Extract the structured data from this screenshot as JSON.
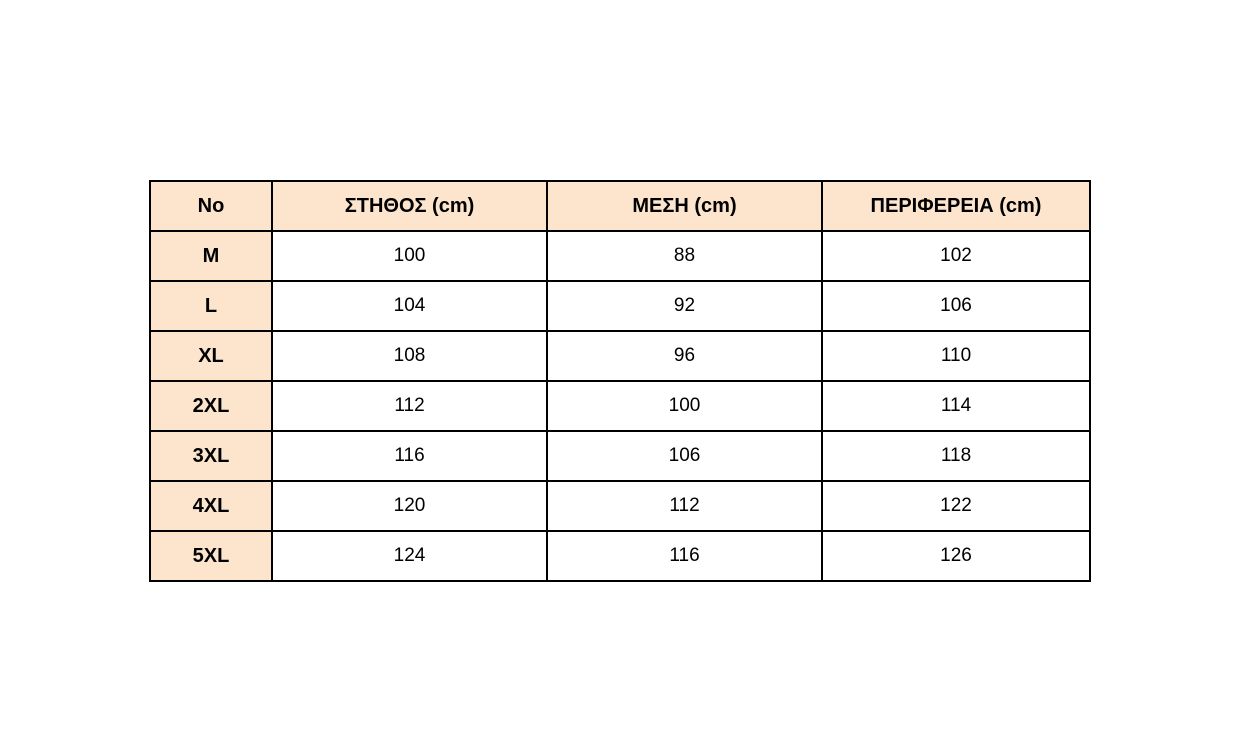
{
  "chart_data": {
    "type": "table",
    "title": "",
    "columns": [
      "No",
      "ΣΤΗΘΟΣ (cm)",
      "ΜΕΣΗ (cm)",
      "ΠΕΡΙΦΕΡΕΙΑ (cm)"
    ],
    "rows": [
      [
        "M",
        "100",
        "88",
        "102"
      ],
      [
        "L",
        "104",
        "92",
        "106"
      ],
      [
        "XL",
        "108",
        "96",
        "110"
      ],
      [
        "2XL",
        "112",
        "100",
        "114"
      ],
      [
        "3XL",
        "116",
        "106",
        "118"
      ],
      [
        "4XL",
        "120",
        "112",
        "122"
      ],
      [
        "5XL",
        "124",
        "116",
        "126"
      ]
    ],
    "layout": {
      "header_bg": "#fce5cc",
      "label_column_bg": "#fce5cc",
      "border_color": "#000000",
      "text_color": "#000000",
      "grid": "on"
    }
  }
}
